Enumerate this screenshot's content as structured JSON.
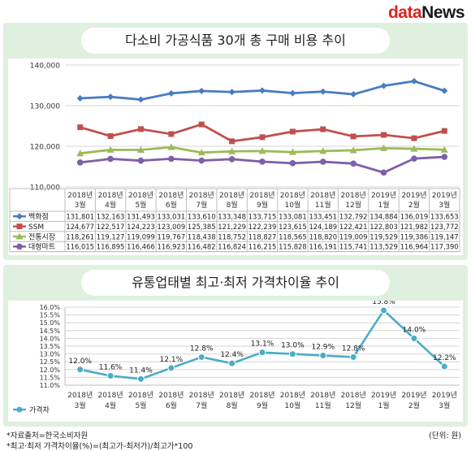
{
  "logo": {
    "part1": "data",
    "part2": "News"
  },
  "colors": {
    "panel": "#dff0df",
    "grid": "#cfcfcf"
  },
  "chart_data": [
    {
      "type": "line",
      "title": "다소비 가공식품 30개 총 구매 비용 추이",
      "categories": [
        {
          "year": "2018년",
          "month": "3월"
        },
        {
          "year": "2018년",
          "month": "4월"
        },
        {
          "year": "2018년",
          "month": "5월"
        },
        {
          "year": "2018년",
          "month": "6월"
        },
        {
          "year": "2018년",
          "month": "7월"
        },
        {
          "year": "2018년",
          "month": "8월"
        },
        {
          "year": "2018년",
          "month": "9월"
        },
        {
          "year": "2018년",
          "month": "10월"
        },
        {
          "year": "2018년",
          "month": "11월"
        },
        {
          "year": "2018년",
          "month": "12월"
        },
        {
          "year": "2019년",
          "month": "1월"
        },
        {
          "year": "2019년",
          "month": "2월"
        },
        {
          "year": "2019년",
          "month": "3월"
        }
      ],
      "ylim": [
        110000,
        140000
      ],
      "yticks": [
        "110,000",
        "120,000",
        "130,000",
        "140,000"
      ],
      "series": [
        {
          "name": "백화점",
          "color": "#4a7cc0",
          "marker": "diamond",
          "values": [
            131801,
            132163,
            131493,
            133031,
            133610,
            133348,
            133715,
            133081,
            133451,
            132792,
            134884,
            136019,
            133653
          ],
          "labels": [
            "131,801",
            "132,163",
            "131,493",
            "133,031",
            "133,610",
            "133,348",
            "133,715",
            "133,081",
            "133,451",
            "132,792",
            "134,884",
            "136,019",
            "133,653"
          ]
        },
        {
          "name": "SSM",
          "color": "#c0504d",
          "marker": "square",
          "values": [
            124677,
            122517,
            124223,
            123009,
            125385,
            121229,
            122239,
            123615,
            124189,
            122421,
            122803,
            121982,
            123772
          ],
          "labels": [
            "124,677",
            "122,517",
            "124,223",
            "123,009",
            "125,385",
            "121,229",
            "122,239",
            "123,615",
            "124,189",
            "122,421",
            "122,803",
            "121,982",
            "123,772"
          ]
        },
        {
          "name": "전통시장",
          "color": "#9bbb59",
          "marker": "triangle",
          "values": [
            118261,
            119127,
            119099,
            119767,
            118438,
            118752,
            118827,
            118565,
            118820,
            119009,
            119529,
            119386,
            119147
          ],
          "labels": [
            "118,261",
            "119,127",
            "119,099",
            "119,767",
            "118,438",
            "118,752",
            "118,827",
            "118,565",
            "118,820",
            "119,009",
            "119,529",
            "119,386",
            "119,147"
          ]
        },
        {
          "name": "대형마트",
          "color": "#7f5fa8",
          "marker": "circle",
          "values": [
            116015,
            116895,
            116466,
            116923,
            116482,
            116824,
            116215,
            115828,
            116191,
            115741,
            113529,
            116964,
            117390
          ],
          "labels": [
            "116,015",
            "116,895",
            "116,466",
            "116,923",
            "116,482",
            "116,824",
            "116,215",
            "115,828",
            "116,191",
            "115,741",
            "113,529",
            "116,964",
            "117,390"
          ]
        }
      ]
    },
    {
      "type": "line",
      "title": "유통업태별 최고·최저 가격차이율 추이",
      "categories": [
        {
          "year": "2018년",
          "month": "3월"
        },
        {
          "year": "2018년",
          "month": "4월"
        },
        {
          "year": "2018년",
          "month": "5월"
        },
        {
          "year": "2018년",
          "month": "6월"
        },
        {
          "year": "2018년",
          "month": "7월"
        },
        {
          "year": "2018년",
          "month": "8월"
        },
        {
          "year": "2018년",
          "month": "9월"
        },
        {
          "year": "2018년",
          "month": "10월"
        },
        {
          "year": "2018년",
          "month": "11월"
        },
        {
          "year": "2018년",
          "month": "12월"
        },
        {
          "year": "2019년",
          "month": "1월"
        },
        {
          "year": "2019년",
          "month": "2월"
        },
        {
          "year": "2019년",
          "month": "3월"
        }
      ],
      "ylim": [
        11.0,
        16.0
      ],
      "yticks": [
        "11.0%",
        "11.5%",
        "12.0%",
        "12.5%",
        "13.0%",
        "13.5%",
        "14.0%",
        "14.5%",
        "15.0%",
        "15.5%",
        "16.0%"
      ],
      "series": [
        {
          "name": "가격차",
          "color": "#4bacc6",
          "marker": "circle",
          "values": [
            12.0,
            11.6,
            11.4,
            12.1,
            12.8,
            12.4,
            13.1,
            13.0,
            12.9,
            12.8,
            15.8,
            14.0,
            12.2
          ],
          "labels": [
            "12.0%",
            "11.6%",
            "11.4%",
            "12.1%",
            "12.8%",
            "12.4%",
            "13.1%",
            "13.0%",
            "12.9%",
            "12.8%",
            "15.8%",
            "14.0%",
            "12.2%"
          ]
        }
      ]
    }
  ],
  "footer": {
    "source": "*자료출처=한국소비자원",
    "formula": "*최고·최저 가격차이율(%)=(최고가-최저가)/최고가*100",
    "unit": "(단위: 원)"
  }
}
